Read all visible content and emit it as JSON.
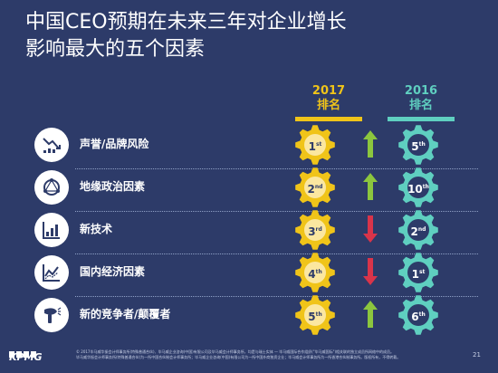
{
  "slide": {
    "title_line1": "中国CEO预期在未来三年对企业增长",
    "title_line2": "影响最大的五个因素"
  },
  "headers": {
    "year_2017": "2017",
    "label_2017": "排名",
    "year_2016": "2016",
    "label_2016": "排名"
  },
  "factors": [
    {
      "label": "声誉/品牌风险",
      "icon": "reputation-chart-icon",
      "rank_2017_num": "1",
      "rank_2017_suffix": "st",
      "rank_2016_num": "5",
      "rank_2016_suffix": "th",
      "trend": "up"
    },
    {
      "label": "地缘政治因素",
      "icon": "globe-network-icon",
      "rank_2017_num": "2",
      "rank_2017_suffix": "nd",
      "rank_2016_num": "10",
      "rank_2016_suffix": "th",
      "trend": "up"
    },
    {
      "label": "新技术",
      "icon": "bar-chart-icon",
      "rank_2017_num": "3",
      "rank_2017_suffix": "rd",
      "rank_2016_num": "2",
      "rank_2016_suffix": "nd",
      "trend": "down"
    },
    {
      "label": "国内经济因素",
      "icon": "line-chart-icon",
      "rank_2017_num": "4",
      "rank_2017_suffix": "th",
      "rank_2016_num": "1",
      "rank_2016_suffix": "st",
      "trend": "down"
    },
    {
      "label": "新的竞争者/颠覆者",
      "icon": "hairdryer-icon",
      "rank_2017_num": "5",
      "rank_2017_suffix": "th",
      "rank_2016_num": "6",
      "rank_2016_suffix": "th",
      "trend": "up"
    }
  ],
  "colors": {
    "background": "#2d3b69",
    "gold": "#f0c419",
    "teal": "#5fcfc0",
    "up_arrow": "#8cc63e",
    "down_arrow": "#d9344a"
  },
  "footer": {
    "text_line1": "© 2017毕马威华振会计师事务所(特殊普通合伙)、毕马威企业咨询(中国)有限公司及毕马威会计师事务所，均是与瑞士实体 — 毕马威国际合作组织(\"毕马威国际\")相关联的独立成员所网络中的成员。",
    "text_line2": "毕马威华振会计师事务所(特殊普通合伙)为一所中国合伙制会计师事务所；毕马威企业咨询(中国)有限公司为一所中国外商独资企业；毕马威会计师事务所为一所香港合伙制事务所。版权所有，不得转载。",
    "logo": "KPMG",
    "page": "21"
  }
}
